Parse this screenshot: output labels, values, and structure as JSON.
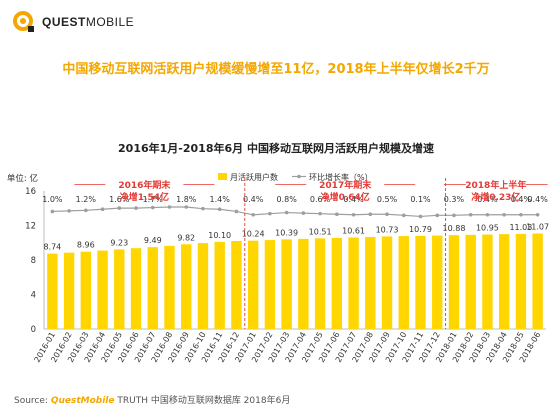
{
  "logo": {
    "brand_bold": "QUEST",
    "brand_thin": "MOBILE"
  },
  "headline": "中国移动互联网活跃用户规模缓慢增至11亿，2018年上半年仅增长2千万",
  "chart_data": {
    "type": "bar",
    "title": "2016年1月-2018年6月 中国移动互联网月活跃用户规模及增速",
    "unit_label": "单位: 亿",
    "ylim": [
      0,
      16
    ],
    "yticks": [
      0,
      4,
      8,
      12,
      16
    ],
    "legend": {
      "bar": "月活跃用户数",
      "line": "环比增长率（%）",
      "placement": "top-right"
    },
    "categories": [
      "2016-01",
      "2016-02",
      "2016-03",
      "2016-04",
      "2016-05",
      "2016-06",
      "2016-07",
      "2016-08",
      "2016-09",
      "2016-10",
      "2016-11",
      "2016-12",
      "2017-01",
      "2017-02",
      "2017-03",
      "2017-04",
      "2017-05",
      "2017-06",
      "2017-07",
      "2017-08",
      "2017-09",
      "2017-10",
      "2017-11",
      "2017-12",
      "2018-01",
      "2018-02",
      "2018-03",
      "2018-04",
      "2018-05",
      "2018-06"
    ],
    "series": [
      {
        "name": "月活跃用户数",
        "values": [
          8.74,
          8.85,
          8.96,
          9.09,
          9.23,
          9.37,
          9.49,
          9.64,
          9.82,
          9.96,
          10.1,
          10.2,
          10.24,
          10.31,
          10.39,
          10.45,
          10.51,
          10.56,
          10.61,
          10.67,
          10.73,
          10.77,
          10.79,
          10.83,
          10.88,
          10.92,
          10.95,
          11.0,
          11.03,
          11.07
        ],
        "labels": [
          "8.74",
          "",
          "8.96",
          "",
          "9.23",
          "",
          "9.49",
          "",
          "9.82",
          "",
          "10.10",
          "",
          "10.24",
          "",
          "10.39",
          "",
          "10.51",
          "",
          "10.61",
          "",
          "10.73",
          "",
          "10.79",
          "",
          "10.88",
          "",
          "10.95",
          "",
          "11.03",
          "11.07"
        ]
      },
      {
        "name": "环比增长率（%）",
        "values": [
          1.0,
          1.1,
          1.2,
          1.4,
          1.6,
          1.6,
          1.7,
          1.8,
          1.8,
          1.5,
          1.4,
          1.0,
          0.4,
          0.6,
          0.8,
          0.7,
          0.6,
          0.5,
          0.4,
          0.5,
          0.5,
          0.3,
          0.1,
          0.3,
          0.3,
          0.4,
          0.4,
          0.4,
          0.4,
          0.4
        ],
        "labels": [
          "1.0%",
          "",
          "1.2%",
          "",
          "1.6%",
          "",
          "1.7%",
          "",
          "1.8%",
          "",
          "1.4%",
          "",
          "0.4%",
          "",
          "0.8%",
          "",
          "0.6%",
          "",
          "0.4%",
          "",
          "0.5%",
          "",
          "0.1%",
          "",
          "0.3%",
          "",
          "0.4%",
          "",
          "0.4%",
          "0.4%"
        ]
      }
    ],
    "annotations": [
      {
        "title": "2016年期末",
        "sub": "净增1.54亿",
        "from": "2016-01",
        "to": "2016-12"
      },
      {
        "title": "2017年期末",
        "sub": "净增0.64亿",
        "from": "2017-01",
        "to": "2017-12"
      },
      {
        "title": "2018年上半年",
        "sub": "净增0.23亿",
        "from": "2018-01",
        "to": "2018-06"
      }
    ],
    "colors": {
      "bar": "#ffd600",
      "line": "#9e9e9e",
      "highlight": "#e53935",
      "accent": "#f4a700"
    }
  },
  "source": {
    "prefix": "Source: ",
    "brand": "QuestMobile",
    "text": " TRUTH 中国移动互联网数据库 2018年6月"
  }
}
